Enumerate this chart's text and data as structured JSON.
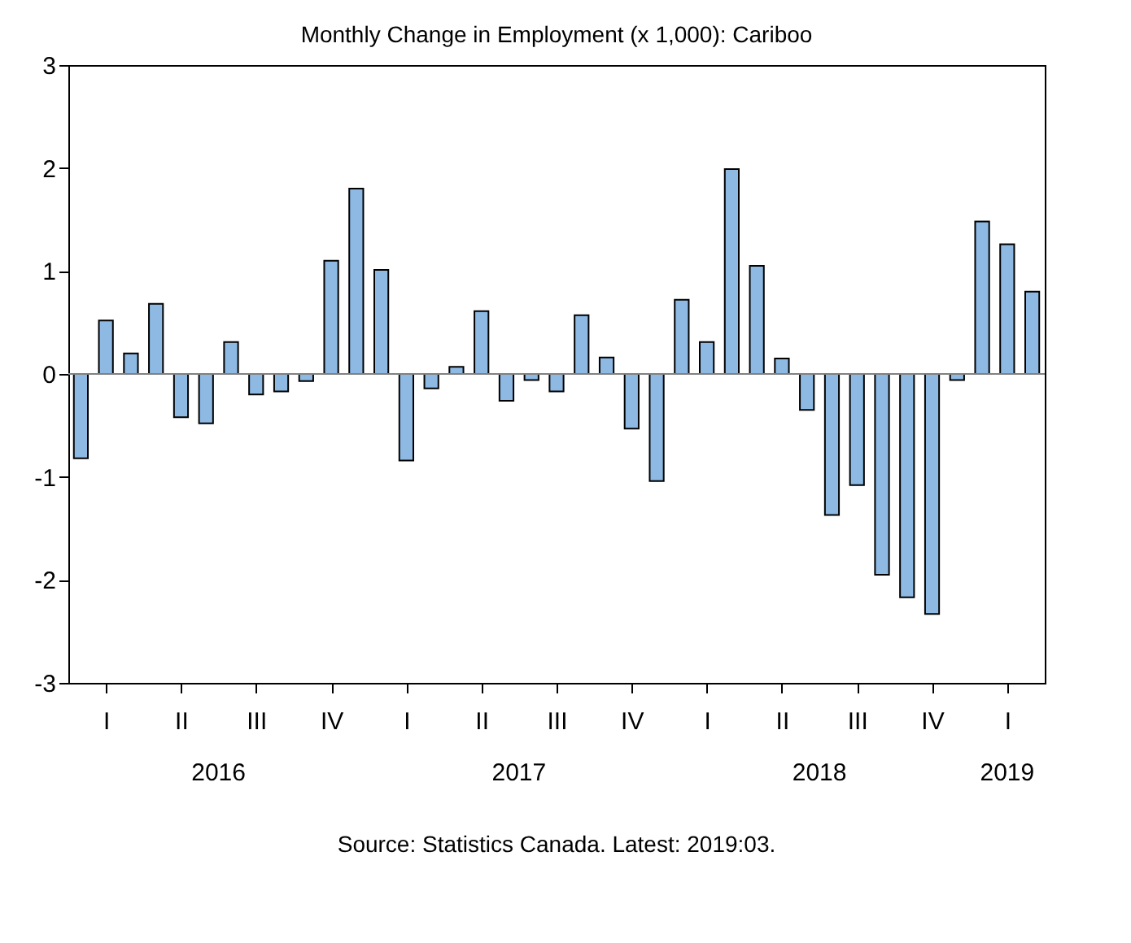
{
  "chart_data": {
    "type": "bar",
    "title": "Monthly Change in Employment (x 1,000): Cariboo",
    "categories": [
      null,
      "I",
      null,
      null,
      "II",
      null,
      null,
      "III",
      null,
      null,
      "IV",
      null,
      null,
      "I",
      null,
      null,
      "II",
      null,
      null,
      "III",
      null,
      null,
      "IV",
      null,
      null,
      "I",
      null,
      null,
      "II",
      null,
      null,
      "III",
      null,
      null,
      "IV",
      null,
      null,
      "I",
      null
    ],
    "series": [
      {
        "color": "#8db9e3",
        "values": [
          -0.82,
          0.52,
          0.2,
          0.68,
          -0.42,
          -0.48,
          0.31,
          -0.2,
          -0.17,
          -0.07,
          1.1,
          1.8,
          1.01,
          -0.84,
          -0.14,
          0.07,
          0.61,
          -0.26,
          -0.06,
          -0.17,
          0.57,
          0.16,
          -0.53,
          -1.04,
          0.72,
          0.31,
          1.99,
          1.05,
          0.15,
          -0.35,
          -1.37,
          -1.08,
          -1.95,
          -2.17,
          -2.33,
          -0.06,
          1.48,
          1.26,
          0.8
        ]
      }
    ],
    "ylim": [
      -3,
      3
    ],
    "yticks": [
      -3,
      -2,
      -1,
      0,
      1,
      2,
      3
    ],
    "grid": false,
    "ref_lines": [
      {
        "axis": "y",
        "value": 0,
        "color": "#808080"
      }
    ],
    "annotations": [
      "2016",
      "2017",
      "2018",
      "2019",
      "Source: Statistics Canada. Latest: 2019:03."
    ]
  }
}
